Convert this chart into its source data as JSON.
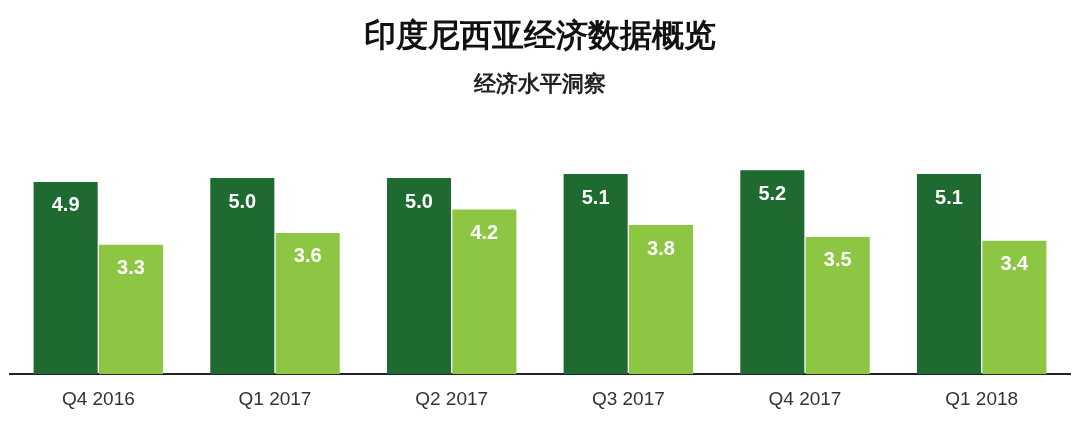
{
  "chart_data": {
    "type": "bar",
    "title": "印度尼西亚经济数据概览",
    "subtitle": "经济水平洞察",
    "categories": [
      "Q4 2016",
      "Q1 2017",
      "Q2 2017",
      "Q3 2017",
      "Q4 2017",
      "Q1 2018"
    ],
    "series": [
      {
        "color": "#1f6a30",
        "values": [
          4.9,
          5.0,
          5.0,
          5.1,
          5.2,
          5.1
        ],
        "value_labels": [
          "4.9",
          "5.0",
          "5.0",
          "5.1",
          "5.2",
          "5.1"
        ]
      },
      {
        "color": "#8dc642",
        "values": [
          3.3,
          3.6,
          4.2,
          3.8,
          3.5,
          3.4
        ],
        "value_labels": [
          "3.3",
          "3.6",
          "4.2",
          "3.8",
          "3.5",
          "3.4"
        ]
      }
    ],
    "grid": false,
    "legend": false,
    "tick_labels": "x"
  }
}
